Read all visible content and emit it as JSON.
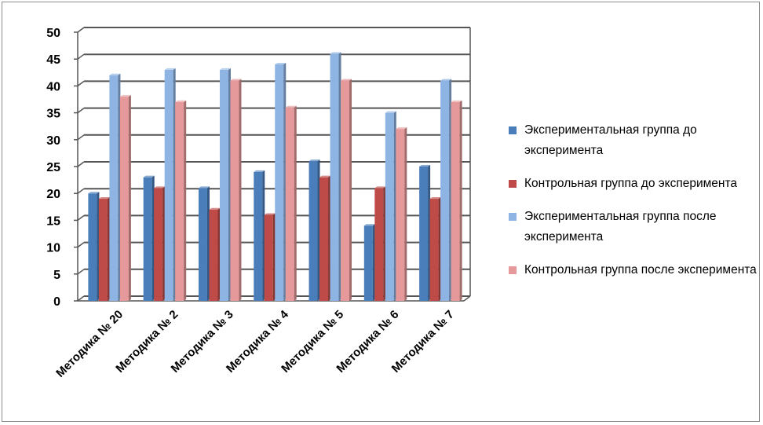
{
  "chart_data": {
    "type": "bar",
    "title": "",
    "xlabel": "",
    "ylabel": "",
    "ylim": [
      0,
      50
    ],
    "yticks": [
      0,
      5,
      10,
      15,
      20,
      25,
      30,
      35,
      40,
      45,
      50
    ],
    "grid": true,
    "legend_position": "right",
    "categories": [
      "Методика № 20",
      "Методика № 2",
      "Методика № 3",
      "Методика № 4",
      "Методика № 5",
      "Методика № 6",
      "Методика № 7"
    ],
    "series": [
      {
        "name": "Экспериментальная  группа до эксперимента",
        "color": "#4a7ebb",
        "values": [
          20,
          23,
          21,
          24,
          26,
          14,
          25
        ]
      },
      {
        "name": "Контрольная  группа до эксперимента",
        "color": "#be4b48",
        "values": [
          19,
          21,
          17,
          16,
          23,
          21,
          19
        ]
      },
      {
        "name": "Экспериментальная  группа после эксперимента",
        "color": "#8eb4e3",
        "values": [
          42,
          43,
          43,
          44,
          46,
          35,
          41
        ]
      },
      {
        "name": "Контрольная  группа после эксперимента",
        "color": "#e6999a",
        "values": [
          38,
          37,
          41,
          36,
          41,
          32,
          37
        ]
      }
    ]
  }
}
